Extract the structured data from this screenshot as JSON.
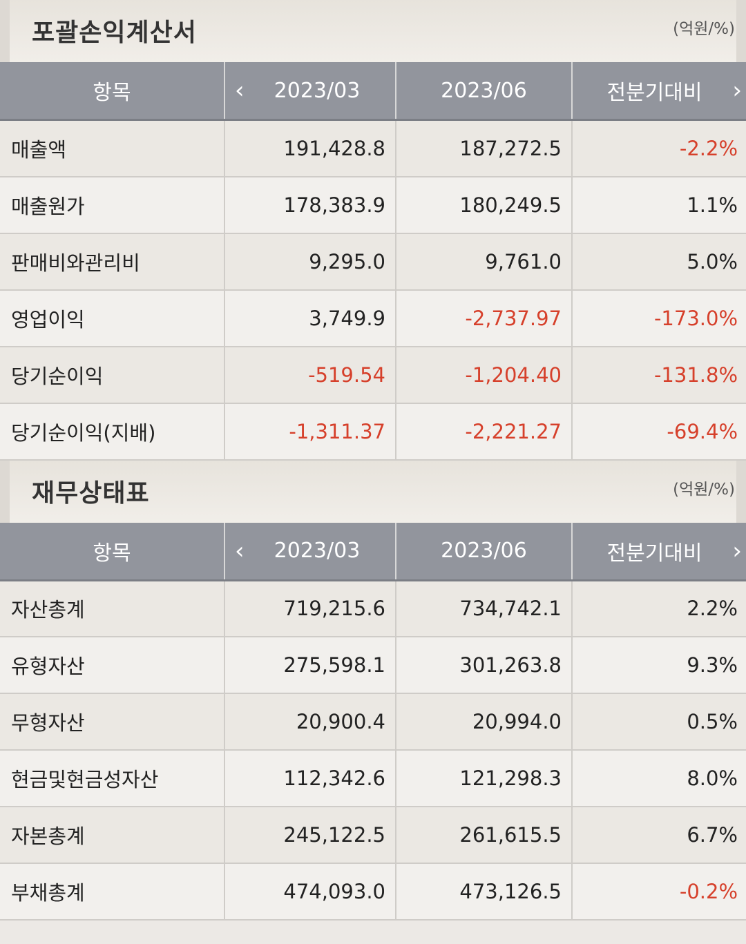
{
  "income_statement": {
    "title": "포괄손익계산서",
    "unit": "(억원/%)",
    "headers": {
      "item": "항목",
      "period1": "2023/03",
      "period2": "2023/06",
      "compare": "전분기대비"
    },
    "rows": [
      {
        "label": "매출액",
        "v1": "191,428.8",
        "v2": "187,272.5",
        "chg": "-2.2%",
        "neg1": false,
        "neg2": false,
        "negc": true
      },
      {
        "label": "매출원가",
        "v1": "178,383.9",
        "v2": "180,249.5",
        "chg": "1.1%",
        "neg1": false,
        "neg2": false,
        "negc": false
      },
      {
        "label": "판매비와관리비",
        "v1": "9,295.0",
        "v2": "9,761.0",
        "chg": "5.0%",
        "neg1": false,
        "neg2": false,
        "negc": false
      },
      {
        "label": "영업이익",
        "v1": "3,749.9",
        "v2": "-2,737.97",
        "chg": "-173.0%",
        "neg1": false,
        "neg2": true,
        "negc": true
      },
      {
        "label": "당기순이익",
        "v1": "-519.54",
        "v2": "-1,204.40",
        "chg": "-131.8%",
        "neg1": true,
        "neg2": true,
        "negc": true
      },
      {
        "label": "당기순이익(지배)",
        "v1": "-1,311.37",
        "v2": "-2,221.27",
        "chg": "-69.4%",
        "neg1": true,
        "neg2": true,
        "negc": true
      }
    ]
  },
  "balance_sheet": {
    "title": "재무상태표",
    "unit": "(억원/%)",
    "headers": {
      "item": "항목",
      "period1": "2023/03",
      "period2": "2023/06",
      "compare": "전분기대비"
    },
    "rows": [
      {
        "label": "자산총계",
        "v1": "719,215.6",
        "v2": "734,742.1",
        "chg": "2.2%",
        "neg1": false,
        "neg2": false,
        "negc": false
      },
      {
        "label": "유형자산",
        "v1": "275,598.1",
        "v2": "301,263.8",
        "chg": "9.3%",
        "neg1": false,
        "neg2": false,
        "negc": false
      },
      {
        "label": "무형자산",
        "v1": "20,900.4",
        "v2": "20,994.0",
        "chg": "0.5%",
        "neg1": false,
        "neg2": false,
        "negc": false
      },
      {
        "label": "현금및현금성자산",
        "v1": "112,342.6",
        "v2": "121,298.3",
        "chg": "8.0%",
        "neg1": false,
        "neg2": false,
        "negc": false
      },
      {
        "label": "자본총계",
        "v1": "245,122.5",
        "v2": "261,615.5",
        "chg": "6.7%",
        "neg1": false,
        "neg2": false,
        "negc": false
      },
      {
        "label": "부채총계",
        "v1": "474,093.0",
        "v2": "473,126.5",
        "chg": "-0.2%",
        "neg1": false,
        "neg2": false,
        "negc": true
      }
    ]
  },
  "icons": {
    "prev": "chevron-left-icon",
    "next": "chevron-right-icon"
  },
  "colors": {
    "negative": "#d6402b",
    "header_bg": "#92959d"
  }
}
